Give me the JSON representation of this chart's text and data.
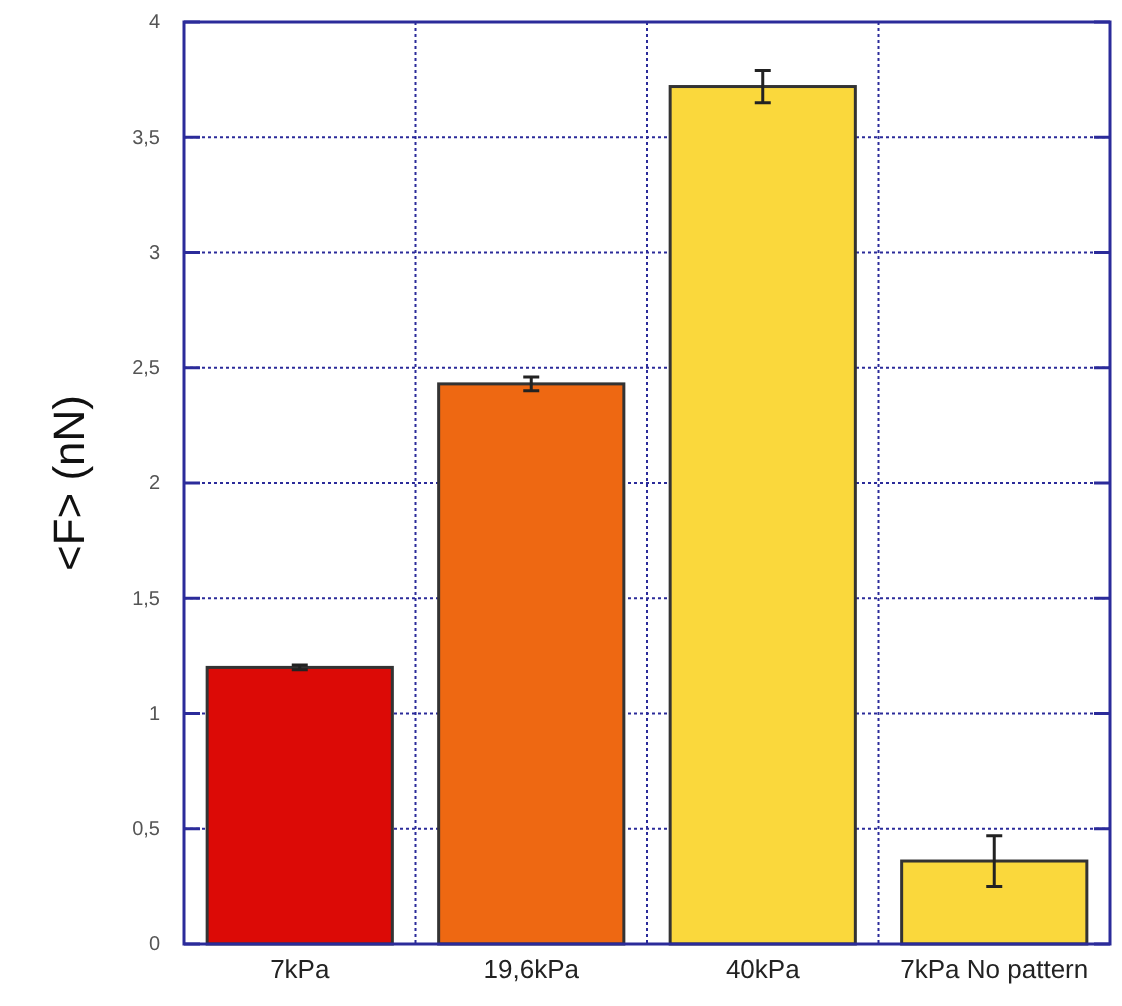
{
  "chart_data": {
    "type": "bar",
    "ylabel": "<F> (nN)",
    "categories": [
      "7kPa",
      "19,6kPa",
      "40kPa",
      "7kPa No pattern"
    ],
    "values": [
      1.2,
      2.43,
      3.72,
      0.36
    ],
    "errors": [
      0.01,
      0.03,
      0.07,
      0.11
    ],
    "colors": [
      "#dc0a06",
      "#ee6812",
      "#fad83c",
      "#fad83c"
    ],
    "ylim": [
      0,
      4
    ],
    "yticks": [
      0,
      {
        "value": 0.5,
        "label": "0,5"
      },
      1,
      {
        "value": 1.5,
        "label": "1,5"
      },
      2,
      {
        "value": 2.5,
        "label": "2,5"
      },
      3,
      {
        "value": 3.5,
        "label": "3,5"
      },
      4
    ],
    "grid": true
  }
}
